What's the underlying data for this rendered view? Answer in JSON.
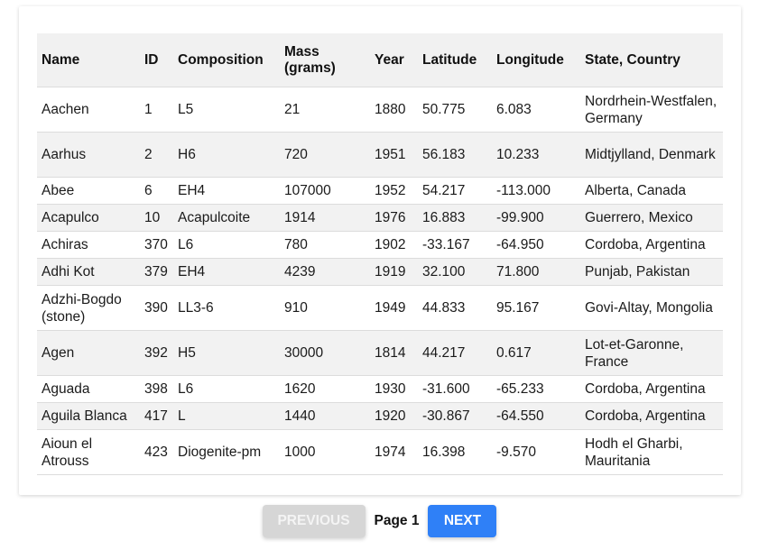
{
  "table": {
    "headers": [
      "Name",
      "ID",
      "Composition",
      "Mass (grams)",
      "Year",
      "Latitude",
      "Longitude",
      "State, Country"
    ],
    "rows": [
      [
        "Aachen",
        "1",
        "L5",
        "21",
        "1880",
        "50.775",
        "6.083",
        "Nordrhein-Westfalen, Germany"
      ],
      [
        "Aarhus",
        "2",
        "H6",
        "720",
        "1951",
        "56.183",
        "10.233",
        "Midtjylland, Denmark"
      ],
      [
        "Abee",
        "6",
        "EH4",
        "107000",
        "1952",
        "54.217",
        "-113.000",
        "Alberta, Canada"
      ],
      [
        "Acapulco",
        "10",
        "Acapulcoite",
        "1914",
        "1976",
        "16.883",
        "-99.900",
        "Guerrero, Mexico"
      ],
      [
        "Achiras",
        "370",
        "L6",
        "780",
        "1902",
        "-33.167",
        "-64.950",
        "Cordoba, Argentina"
      ],
      [
        "Adhi Kot",
        "379",
        "EH4",
        "4239",
        "1919",
        "32.100",
        "71.800",
        "Punjab, Pakistan"
      ],
      [
        "Adzhi-Bogdo (stone)",
        "390",
        "LL3-6",
        "910",
        "1949",
        "44.833",
        "95.167",
        "Govi-Altay, Mongolia"
      ],
      [
        "Agen",
        "392",
        "H5",
        "30000",
        "1814",
        "44.217",
        "0.617",
        "Lot-et-Garonne, France"
      ],
      [
        "Aguada",
        "398",
        "L6",
        "1620",
        "1930",
        "-31.600",
        "-65.233",
        "Cordoba, Argentina"
      ],
      [
        "Aguila Blanca",
        "417",
        "L",
        "1440",
        "1920",
        "-30.867",
        "-64.550",
        "Cordoba, Argentina"
      ],
      [
        "Aioun el Atrouss",
        "423",
        "Diogenite-pm",
        "1000",
        "1974",
        "16.398",
        "-9.570",
        "Hodh el Gharbi, Mauritania"
      ]
    ]
  },
  "pagination": {
    "previous_label": "PREVIOUS",
    "page_label": "Page 1",
    "next_label": "NEXT"
  },
  "colors": {
    "next_button": "#2f80f7",
    "previous_button_disabled": "#d6d6d6",
    "header_background": "#f1f1f1",
    "stripe_background": "#f2f2f2"
  }
}
